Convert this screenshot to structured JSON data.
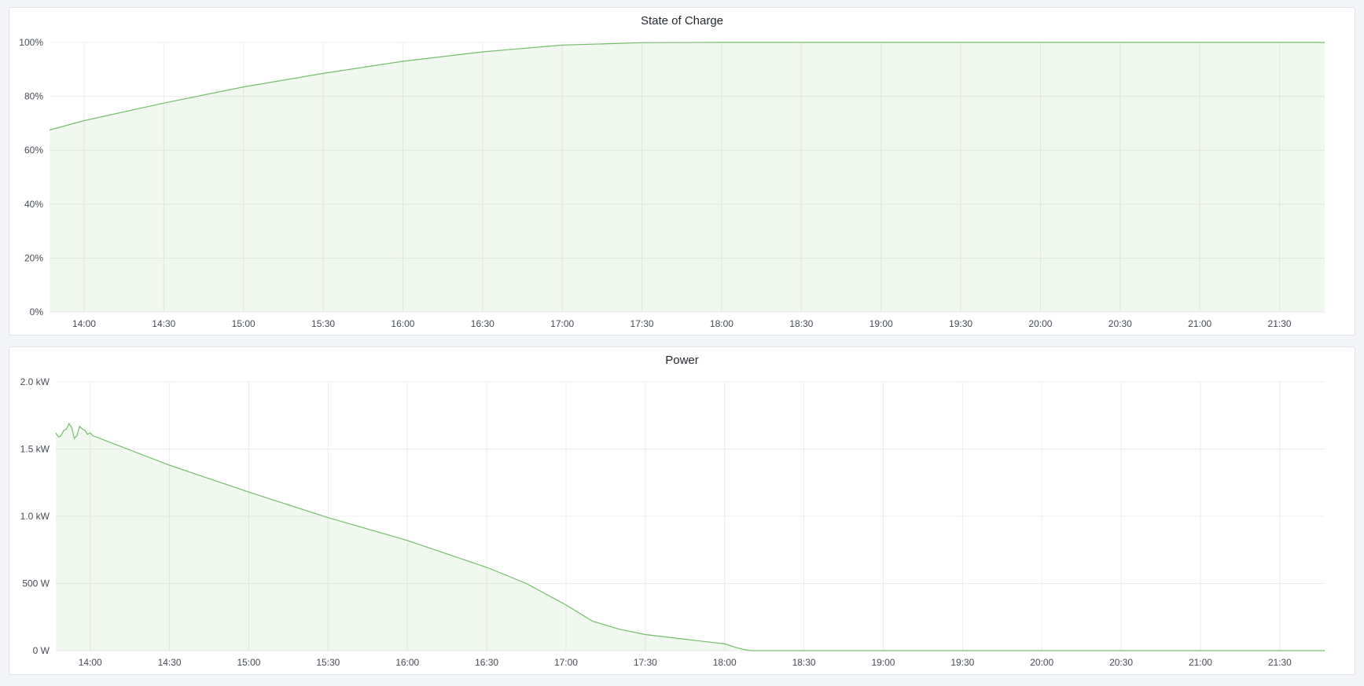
{
  "chart_data": [
    {
      "type": "area",
      "title": "State of Charge",
      "x_range": [
        "13:47",
        "21:47"
      ],
      "x_ticks": [
        "14:00",
        "14:30",
        "15:00",
        "15:30",
        "16:00",
        "16:30",
        "17:00",
        "17:30",
        "18:00",
        "18:30",
        "19:00",
        "19:30",
        "20:00",
        "20:30",
        "21:00",
        "21:30"
      ],
      "ylim": [
        0,
        100
      ],
      "y_ticks": [
        0,
        20,
        40,
        60,
        80,
        100
      ],
      "y_tick_labels": [
        "0%",
        "20%",
        "40%",
        "60%",
        "80%",
        "100%"
      ],
      "grid": true,
      "color": "#73bf69",
      "points": [
        [
          "13:47",
          67.5
        ],
        [
          "14:00",
          71
        ],
        [
          "14:30",
          77.5
        ],
        [
          "15:00",
          83.5
        ],
        [
          "15:30",
          88.5
        ],
        [
          "16:00",
          93
        ],
        [
          "16:30",
          96.5
        ],
        [
          "17:00",
          99
        ],
        [
          "17:30",
          99.9
        ],
        [
          "18:00",
          100
        ],
        [
          "21:47",
          100
        ]
      ]
    },
    {
      "type": "area",
      "title": "Power",
      "x_range": [
        "13:47",
        "21:47"
      ],
      "x_ticks": [
        "14:00",
        "14:30",
        "15:00",
        "15:30",
        "16:00",
        "16:30",
        "17:00",
        "17:30",
        "18:00",
        "18:30",
        "19:00",
        "19:30",
        "20:00",
        "20:30",
        "21:00",
        "21:30"
      ],
      "ylim": [
        0,
        2000
      ],
      "y_ticks": [
        0,
        500,
        1000,
        1500,
        2000
      ],
      "y_tick_labels": [
        "0 W",
        "500 W",
        "1.0 kW",
        "1.5 kW",
        "2.0 kW"
      ],
      "grid": true,
      "color": "#73bf69",
      "points": [
        [
          "13:47",
          1620
        ],
        [
          "13:48",
          1590
        ],
        [
          "13:49",
          1600
        ],
        [
          "13:50",
          1640
        ],
        [
          "13:51",
          1650
        ],
        [
          "13:52",
          1690
        ],
        [
          "13:53",
          1660
        ],
        [
          "13:54",
          1580
        ],
        [
          "13:55",
          1600
        ],
        [
          "13:56",
          1670
        ],
        [
          "13:57",
          1650
        ],
        [
          "13:58",
          1640
        ],
        [
          "13:59",
          1610
        ],
        [
          "14:00",
          1620
        ],
        [
          "14:01",
          1600
        ],
        [
          "14:30",
          1380
        ],
        [
          "15:00",
          1180
        ],
        [
          "15:30",
          990
        ],
        [
          "16:00",
          820
        ],
        [
          "16:30",
          620
        ],
        [
          "16:45",
          500
        ],
        [
          "17:00",
          340
        ],
        [
          "17:10",
          220
        ],
        [
          "17:20",
          160
        ],
        [
          "17:30",
          120
        ],
        [
          "17:45",
          85
        ],
        [
          "18:00",
          50
        ],
        [
          "18:04",
          25
        ],
        [
          "18:07",
          10
        ],
        [
          "18:10",
          0
        ],
        [
          "21:47",
          0
        ]
      ]
    }
  ]
}
